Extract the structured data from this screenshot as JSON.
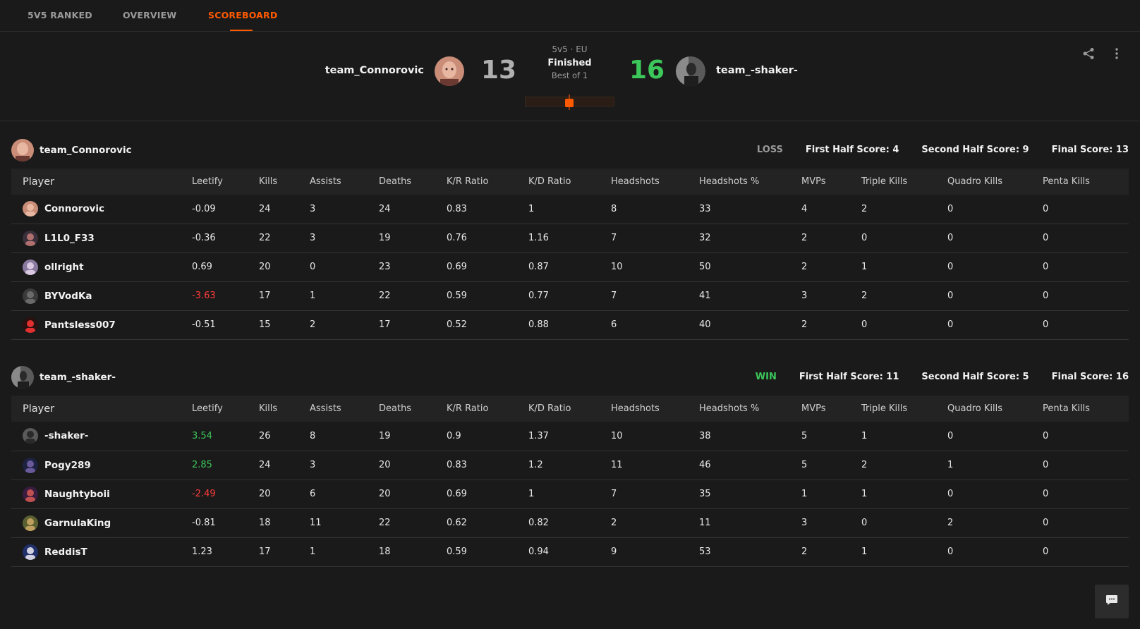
{
  "nav": {
    "tabs": [
      "5V5 RANKED",
      "OVERVIEW",
      "SCOREBOARD"
    ],
    "active_tab": "SCOREBOARD"
  },
  "match": {
    "team1_name": "team_Connorovic",
    "team1_score": "13",
    "team2_name": "team_-shaker-",
    "team2_score": "16",
    "mode": "5v5 · EU",
    "status": "Finished",
    "best_of": "Best of 1"
  },
  "colors": {
    "accent": "#ff5a00",
    "win": "#3cc75a",
    "loss_score": "#b0b0b0",
    "negative": "#ff3b3b"
  },
  "columns": [
    "Player",
    "Leetify",
    "Kills",
    "Assists",
    "Deaths",
    "K/R Ratio",
    "K/D Ratio",
    "Headshots",
    "Headshots %",
    "MVPs",
    "Triple Kills",
    "Quadro Kills",
    "Penta Kills"
  ],
  "teams": [
    {
      "name": "team_Connorovic",
      "result": "LOSS",
      "first_half": "First Half Score: 4",
      "second_half": "Second Half Score: 9",
      "final": "Final Score: 13",
      "players": [
        {
          "name": "Connorovic",
          "leetify": "-0.09",
          "kills": "24",
          "assists": "3",
          "deaths": "24",
          "kr": "0.83",
          "kd": "1",
          "hs": "8",
          "hsp": "33",
          "mvps": "4",
          "triple": "2",
          "quadro": "0",
          "penta": "0"
        },
        {
          "name": "L1L0_F33",
          "leetify": "-0.36",
          "kills": "22",
          "assists": "3",
          "deaths": "19",
          "kr": "0.76",
          "kd": "1.16",
          "hs": "7",
          "hsp": "32",
          "mvps": "2",
          "triple": "0",
          "quadro": "0",
          "penta": "0"
        },
        {
          "name": "ollright",
          "leetify": "0.69",
          "kills": "20",
          "assists": "0",
          "deaths": "23",
          "kr": "0.69",
          "kd": "0.87",
          "hs": "10",
          "hsp": "50",
          "mvps": "2",
          "triple": "1",
          "quadro": "0",
          "penta": "0"
        },
        {
          "name": "BYVodKa",
          "leetify": "-3.63",
          "kills": "17",
          "assists": "1",
          "deaths": "22",
          "kr": "0.59",
          "kd": "0.77",
          "hs": "7",
          "hsp": "41",
          "mvps": "3",
          "triple": "2",
          "quadro": "0",
          "penta": "0"
        },
        {
          "name": "Pantsless007",
          "leetify": "-0.51",
          "kills": "15",
          "assists": "2",
          "deaths": "17",
          "kr": "0.52",
          "kd": "0.88",
          "hs": "6",
          "hsp": "40",
          "mvps": "2",
          "triple": "0",
          "quadro": "0",
          "penta": "0"
        }
      ]
    },
    {
      "name": "team_-shaker-",
      "result": "WIN",
      "first_half": "First Half Score: 11",
      "second_half": "Second Half Score: 5",
      "final": "Final Score: 16",
      "players": [
        {
          "name": "-shaker-",
          "leetify": "3.54",
          "kills": "26",
          "assists": "8",
          "deaths": "19",
          "kr": "0.9",
          "kd": "1.37",
          "hs": "10",
          "hsp": "38",
          "mvps": "5",
          "triple": "1",
          "quadro": "0",
          "penta": "0"
        },
        {
          "name": "Pogy289",
          "leetify": "2.85",
          "kills": "24",
          "assists": "3",
          "deaths": "20",
          "kr": "0.83",
          "kd": "1.2",
          "hs": "11",
          "hsp": "46",
          "mvps": "5",
          "triple": "2",
          "quadro": "1",
          "penta": "0"
        },
        {
          "name": "Naughtyboii",
          "leetify": "-2.49",
          "kills": "20",
          "assists": "6",
          "deaths": "20",
          "kr": "0.69",
          "kd": "1",
          "hs": "7",
          "hsp": "35",
          "mvps": "1",
          "triple": "1",
          "quadro": "0",
          "penta": "0"
        },
        {
          "name": "GarnulaKing",
          "leetify": "-0.81",
          "kills": "18",
          "assists": "11",
          "deaths": "22",
          "kr": "0.62",
          "kd": "0.82",
          "hs": "2",
          "hsp": "11",
          "mvps": "3",
          "triple": "0",
          "quadro": "2",
          "penta": "0"
        },
        {
          "name": "ReddisT",
          "leetify": "1.23",
          "kills": "17",
          "assists": "1",
          "deaths": "18",
          "kr": "0.59",
          "kd": "0.94",
          "hs": "9",
          "hsp": "53",
          "mvps": "2",
          "triple": "1",
          "quadro": "0",
          "penta": "0"
        }
      ]
    }
  ]
}
